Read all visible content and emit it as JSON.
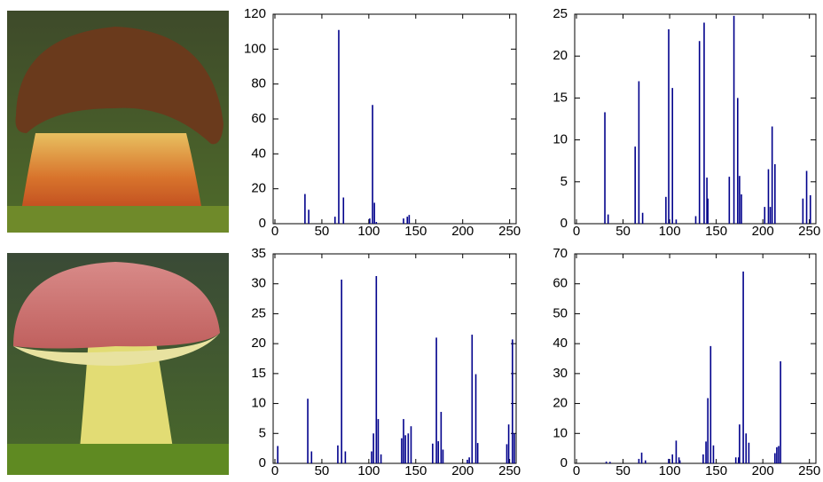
{
  "chart_data": [
    {
      "type": "bar",
      "color": "#00008b",
      "xlim": [
        0,
        256
      ],
      "xticks": [
        0,
        50,
        100,
        150,
        200,
        250
      ],
      "ylim": [
        0,
        120
      ],
      "yticks": [
        0,
        20,
        40,
        60,
        80,
        100,
        120
      ],
      "x": [
        32,
        36,
        64,
        68,
        73,
        101,
        104,
        106,
        108,
        137,
        141,
        143
      ],
      "values": [
        17,
        8,
        4,
        111,
        15,
        3,
        68,
        12,
        1,
        3,
        4,
        5
      ]
    },
    {
      "type": "bar",
      "color": "#00008b",
      "xlim": [
        0,
        256
      ],
      "xticks": [
        0,
        50,
        100,
        150,
        200,
        250
      ],
      "ylim": [
        0,
        25
      ],
      "yticks": [
        0,
        5,
        10,
        15,
        20,
        25
      ],
      "x": [
        30.5,
        34,
        63,
        67,
        71,
        96,
        99,
        103,
        107,
        128,
        132,
        137,
        140,
        141,
        164,
        169,
        173,
        175,
        177,
        202,
        206,
        208,
        210,
        213,
        243,
        247,
        251
      ],
      "values": [
        13.3,
        1.1,
        9.2,
        17,
        1.3,
        3.2,
        23.2,
        16.2,
        0.5,
        0.9,
        21.8,
        24,
        5.5,
        3,
        5.6,
        24.8,
        15,
        5.7,
        3.5,
        2,
        6.5,
        2,
        11.6,
        7.1,
        3,
        6.3,
        3.4
      ]
    },
    {
      "type": "bar",
      "color": "#00008b",
      "xlim": [
        0,
        256
      ],
      "xticks": [
        0,
        50,
        100,
        150,
        200,
        250
      ],
      "ylim": [
        0,
        35
      ],
      "yticks": [
        0,
        5,
        10,
        15,
        20,
        25,
        30,
        35
      ],
      "x": [
        3,
        35,
        39,
        67,
        71,
        75,
        103,
        105,
        108,
        110,
        113,
        135,
        137,
        139,
        142,
        145,
        168,
        172,
        174,
        177,
        179,
        205,
        207,
        210,
        214,
        216,
        247,
        249,
        253,
        255
      ],
      "values": [
        2.9,
        10.8,
        2,
        3,
        30.7,
        2,
        2,
        5,
        31.3,
        7.4,
        1.5,
        4.2,
        7.4,
        4.7,
        5,
        6.2,
        3.3,
        21,
        3.7,
        8.6,
        2.3,
        0.6,
        1,
        21.5,
        14.9,
        3.4,
        3.2,
        6.5,
        20.7,
        5
      ]
    },
    {
      "type": "bar",
      "color": "#00008b",
      "xlim": [
        0,
        256
      ],
      "xticks": [
        0,
        50,
        100,
        150,
        200,
        250
      ],
      "ylim": [
        0,
        70
      ],
      "yticks": [
        0,
        10,
        20,
        30,
        40,
        50,
        60,
        70
      ],
      "x": [
        32,
        36,
        67,
        70,
        74,
        99,
        103,
        107,
        110,
        111,
        136,
        139,
        141,
        144,
        147,
        171,
        174,
        175,
        179,
        182,
        185,
        213,
        215,
        217,
        219
      ],
      "values": [
        0.6,
        0.5,
        1.5,
        3.6,
        1,
        1.5,
        3,
        7.6,
        2,
        1,
        3,
        7.3,
        21.8,
        39.2,
        6,
        2,
        2,
        13,
        64.1,
        10,
        6.9,
        3.4,
        5.4,
        5.8,
        34.1
      ]
    }
  ]
}
